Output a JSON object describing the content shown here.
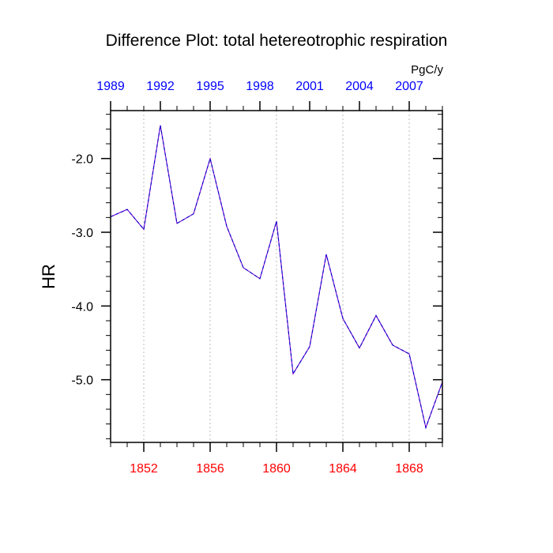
{
  "chart_data": {
    "type": "line",
    "title": "Difference Plot: total hetereotrophic respiration",
    "units": "PgC/y",
    "ylabel": "HR",
    "xlabel": "",
    "x": [
      1850,
      1851,
      1852,
      1853,
      1854,
      1855,
      1856,
      1857,
      1858,
      1859,
      1860,
      1861,
      1862,
      1863,
      1864,
      1865,
      1866,
      1867,
      1868,
      1869,
      1870
    ],
    "series": [
      {
        "values": [
          -2.79,
          -2.69,
          -2.96,
          -1.55,
          -2.88,
          -2.75,
          -2.0,
          -2.92,
          -3.48,
          -3.63,
          -2.85,
          -4.92,
          -4.55,
          -3.3,
          -4.17,
          -4.57,
          -4.13,
          -4.53,
          -4.65,
          -5.65,
          -5.03
        ],
        "color": "#7a00cc",
        "dash_color": "#0000cc"
      }
    ],
    "xlim": [
      1850,
      1870
    ],
    "ylim": [
      -5.85,
      -1.35
    ],
    "yticks": [
      -2.0,
      -3.0,
      -4.0,
      -5.0
    ],
    "ytick_labels": [
      "-2.0",
      "-3.0",
      "-4.0",
      "-5.0"
    ],
    "bottom_axis": {
      "ticks": [
        1852,
        1856,
        1860,
        1864,
        1868
      ],
      "labels": [
        "1852",
        "1856",
        "1860",
        "1864",
        "1868"
      ],
      "color": "#ff0000"
    },
    "top_axis": {
      "ticks": [
        1989,
        1992,
        1995,
        1998,
        2001,
        2004,
        2007
      ],
      "labels": [
        "1989",
        "1992",
        "1995",
        "1998",
        "2001",
        "2004",
        "2007"
      ],
      "offset_years": 139,
      "color": "#0000ff"
    },
    "grid": "vertical dotted at bottom-axis ticks",
    "grid_color": "#bbbbbb"
  }
}
